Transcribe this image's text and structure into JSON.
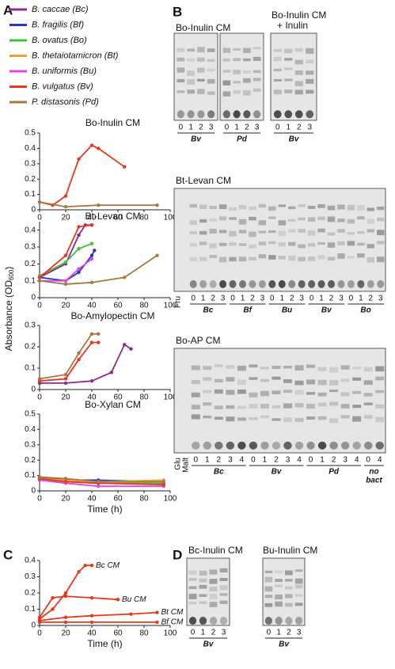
{
  "panel_labels": [
    "A",
    "B",
    "C",
    "D"
  ],
  "legend": [
    {
      "label": "B. caccae (Bc)",
      "color": "#8e2a90"
    },
    {
      "label": "B. fragilis (Bf)",
      "color": "#2236c8"
    },
    {
      "label": "B. ovatus (Bo)",
      "color": "#3ec23e"
    },
    {
      "label": "B. thetaiotamicron (Bt)",
      "color": "#f0a030"
    },
    {
      "label": "B. uniformis (Bu)",
      "color": "#e444e4"
    },
    {
      "label": "B. vulgatus (Bv)",
      "color": "#e8381c"
    },
    {
      "label": "P. distasonis (Pd)",
      "color": "#a87840"
    }
  ],
  "y_label": {
    "text": "Absorbance (OD",
    "sub": "600",
    "close": ")"
  },
  "chart_data": [
    {
      "type": "line",
      "title": "Bo-Inulin CM",
      "xlim": [
        0,
        100
      ],
      "xticks": [
        0,
        20,
        40,
        60,
        80,
        100
      ],
      "ylim": [
        0,
        0.5
      ],
      "yticks": [
        0,
        0.1,
        0.2,
        0.3,
        0.4,
        0.5
      ],
      "series": [
        {
          "color": "#e8381c",
          "x": [
            0,
            10,
            20,
            30,
            40,
            45,
            65
          ],
          "values": [
            0.05,
            0.03,
            0.09,
            0.33,
            0.42,
            0.4,
            0.28
          ]
        },
        {
          "color": "#a87840",
          "x": [
            0,
            20,
            45,
            90
          ],
          "values": [
            0.05,
            0.02,
            0.03,
            0.03
          ]
        }
      ]
    },
    {
      "type": "line",
      "title": "Bt-Levan CM",
      "xlim": [
        0,
        100
      ],
      "xticks": [
        0,
        20,
        40,
        60,
        80,
        100
      ],
      "ylim": [
        0,
        0.45
      ],
      "yticks": [
        0,
        0.1,
        0.2,
        0.3,
        0.4
      ],
      "series": [
        {
          "color": "#8e2a90",
          "x": [
            0,
            20,
            30,
            35,
            40
          ],
          "values": [
            0.12,
            0.2,
            0.37,
            0.43,
            0.43
          ]
        },
        {
          "color": "#2236c8",
          "x": [
            0,
            20,
            30,
            40,
            42
          ],
          "values": [
            0.12,
            0.1,
            0.15,
            0.25,
            0.28
          ]
        },
        {
          "color": "#3ec23e",
          "x": [
            0,
            20,
            30,
            40
          ],
          "values": [
            0.13,
            0.21,
            0.29,
            0.32
          ]
        },
        {
          "color": "#e444e4",
          "x": [
            0,
            20,
            30,
            40
          ],
          "values": [
            0.1,
            0.1,
            0.17,
            0.23
          ]
        },
        {
          "color": "#e8381c",
          "x": [
            0,
            20,
            30,
            40
          ],
          "values": [
            0.12,
            0.25,
            0.42,
            0.43
          ]
        },
        {
          "color": "#a87840",
          "x": [
            0,
            20,
            40,
            65,
            90
          ],
          "values": [
            0.1,
            0.08,
            0.09,
            0.12,
            0.25
          ]
        }
      ]
    },
    {
      "type": "line",
      "title": "Bo-Amylopectin CM",
      "xlim": [
        0,
        100
      ],
      "xticks": [
        0,
        20,
        40,
        60,
        80,
        100
      ],
      "ylim": [
        0,
        0.3
      ],
      "yticks": [
        0,
        0.1,
        0.2,
        0.3
      ],
      "series": [
        {
          "color": "#8e2a90",
          "x": [
            0,
            20,
            40,
            55,
            65,
            70
          ],
          "values": [
            0.03,
            0.03,
            0.04,
            0.08,
            0.21,
            0.19
          ]
        },
        {
          "color": "#e8381c",
          "x": [
            0,
            20,
            30,
            40,
            45
          ],
          "values": [
            0.04,
            0.05,
            0.14,
            0.22,
            0.22
          ]
        },
        {
          "color": "#a87840",
          "x": [
            0,
            20,
            30,
            40,
            45
          ],
          "values": [
            0.05,
            0.07,
            0.17,
            0.26,
            0.26
          ]
        }
      ]
    },
    {
      "type": "line",
      "title": "Bo-Xylan CM",
      "xlabel": "Time (h)",
      "xlim": [
        0,
        100
      ],
      "xticks": [
        0,
        20,
        40,
        60,
        80,
        100
      ],
      "ylim": [
        0,
        0.5
      ],
      "yticks": [
        0,
        0.1,
        0.2,
        0.3,
        0.4,
        0.5
      ],
      "series": [
        {
          "color": "#8e2a90",
          "x": [
            0,
            20,
            45,
            95
          ],
          "values": [
            0.08,
            0.06,
            0.05,
            0.05
          ]
        },
        {
          "color": "#2236c8",
          "x": [
            0,
            20,
            45,
            95
          ],
          "values": [
            0.09,
            0.07,
            0.07,
            0.06
          ]
        },
        {
          "color": "#3ec23e",
          "x": [
            0,
            20,
            45,
            95
          ],
          "values": [
            0.07,
            0.06,
            0.05,
            0.05
          ]
        },
        {
          "color": "#f0a030",
          "x": [
            0,
            20,
            45,
            95
          ],
          "values": [
            0.08,
            0.07,
            0.06,
            0.07
          ]
        },
        {
          "color": "#e444e4",
          "x": [
            0,
            20,
            45,
            95
          ],
          "values": [
            0.07,
            0.05,
            0.03,
            0.03
          ]
        },
        {
          "color": "#e8381c",
          "x": [
            0,
            20,
            45,
            95
          ],
          "values": [
            0.08,
            0.06,
            0.05,
            0.04
          ]
        },
        {
          "color": "#a87840",
          "x": [
            0,
            20,
            45,
            95
          ],
          "values": [
            0.09,
            0.08,
            0.06,
            0.06
          ]
        }
      ]
    },
    {
      "type": "line",
      "xlabel": "Time (h)",
      "xlim": [
        0,
        100
      ],
      "xticks": [
        0,
        20,
        40,
        60,
        80,
        100
      ],
      "ylim": [
        0,
        0.4
      ],
      "yticks": [
        0,
        0.1,
        0.2,
        0.3,
        0.4
      ],
      "series": [
        {
          "name": "Bc CM",
          "color": "#e8381c",
          "x": [
            0,
            10,
            20,
            30,
            35,
            40
          ],
          "values": [
            0.04,
            0.1,
            0.2,
            0.33,
            0.37,
            0.37
          ]
        },
        {
          "name": "Bu CM",
          "color": "#e8381c",
          "x": [
            0,
            10,
            20,
            40,
            60
          ],
          "values": [
            0.05,
            0.17,
            0.18,
            0.17,
            0.16
          ]
        },
        {
          "name": "Bt CM",
          "color": "#e8381c",
          "x": [
            0,
            20,
            40,
            70,
            90
          ],
          "values": [
            0.03,
            0.05,
            0.06,
            0.07,
            0.08
          ]
        },
        {
          "name": "Bf CM",
          "color": "#e8381c",
          "x": [
            0,
            20,
            40,
            90
          ],
          "values": [
            0.02,
            0.02,
            0.02,
            0.02
          ]
        }
      ]
    }
  ],
  "gels": [
    {
      "title": [
        "Bo-Inulin CM"
      ],
      "groups": [
        {
          "lanes": [
            "0",
            "1",
            "2",
            "3"
          ],
          "label": [
            "Bv"
          ]
        },
        {
          "lanes": [
            "0",
            "1",
            "2",
            "3"
          ],
          "label": [
            "Pd"
          ]
        }
      ]
    },
    {
      "title": [
        "Bo-Inulin CM",
        "+ Inulin"
      ],
      "groups": [
        {
          "lanes": [
            "0",
            "1",
            "2",
            "3"
          ],
          "label": [
            "Bv"
          ]
        }
      ]
    },
    {
      "title": [
        "Bt-Levan CM"
      ],
      "side": [
        "Fru"
      ],
      "groups": [
        {
          "lanes": [
            "0",
            "1",
            "2",
            "3"
          ],
          "label": [
            "Bc"
          ]
        },
        {
          "lanes": [
            "0",
            "1",
            "2",
            "3"
          ],
          "label": [
            "Bf"
          ]
        },
        {
          "lanes": [
            "0",
            "1",
            "2",
            "3"
          ],
          "label": [
            "Bu"
          ]
        },
        {
          "lanes": [
            "0",
            "1",
            "2",
            "3"
          ],
          "label": [
            "Bv"
          ]
        },
        {
          "lanes": [
            "0",
            "1",
            "2",
            "3"
          ],
          "label": [
            "Bo"
          ]
        }
      ]
    },
    {
      "title": [
        "Bo-AP CM"
      ],
      "side": [
        "Glu",
        "Malt"
      ],
      "groups": [
        {
          "lanes": [
            "0",
            "1",
            "2",
            "3",
            "4"
          ],
          "label": [
            "Bc"
          ]
        },
        {
          "lanes": [
            "0",
            "1",
            "2",
            "3",
            "4"
          ],
          "label": [
            "Bv"
          ]
        },
        {
          "lanes": [
            "0",
            "1",
            "2",
            "3",
            "4"
          ],
          "label": [
            "Pd"
          ]
        },
        {
          "lanes": [
            "0",
            "4"
          ],
          "label": [
            "no",
            "bact"
          ]
        }
      ]
    },
    {
      "title": [
        "Bc-Inulin CM"
      ],
      "groups": [
        {
          "lanes": [
            "0",
            "1",
            "2",
            "3"
          ],
          "label": [
            "Bv"
          ]
        }
      ]
    },
    {
      "title": [
        "Bu-Inulin CM"
      ],
      "groups": [
        {
          "lanes": [
            "0",
            "1",
            "2",
            "3"
          ],
          "label": [
            "Bv"
          ]
        }
      ]
    }
  ]
}
